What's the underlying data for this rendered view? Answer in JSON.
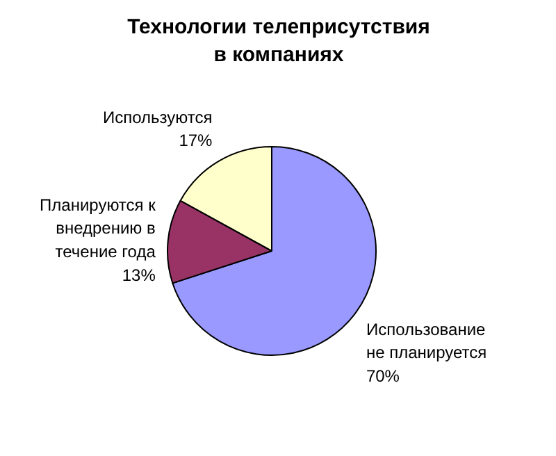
{
  "chart_data": {
    "type": "pie",
    "title": "Технологии телеприсутствия\nв компаниях",
    "categories": [
      "Использование не планируется",
      "Планируются к внедрению в течение года",
      "Используются"
    ],
    "values": [
      70,
      13,
      17
    ],
    "value_labels": [
      "70%",
      "13%",
      "17%"
    ],
    "colors": [
      "#9999ff",
      "#993366",
      "#ffffcc"
    ]
  }
}
